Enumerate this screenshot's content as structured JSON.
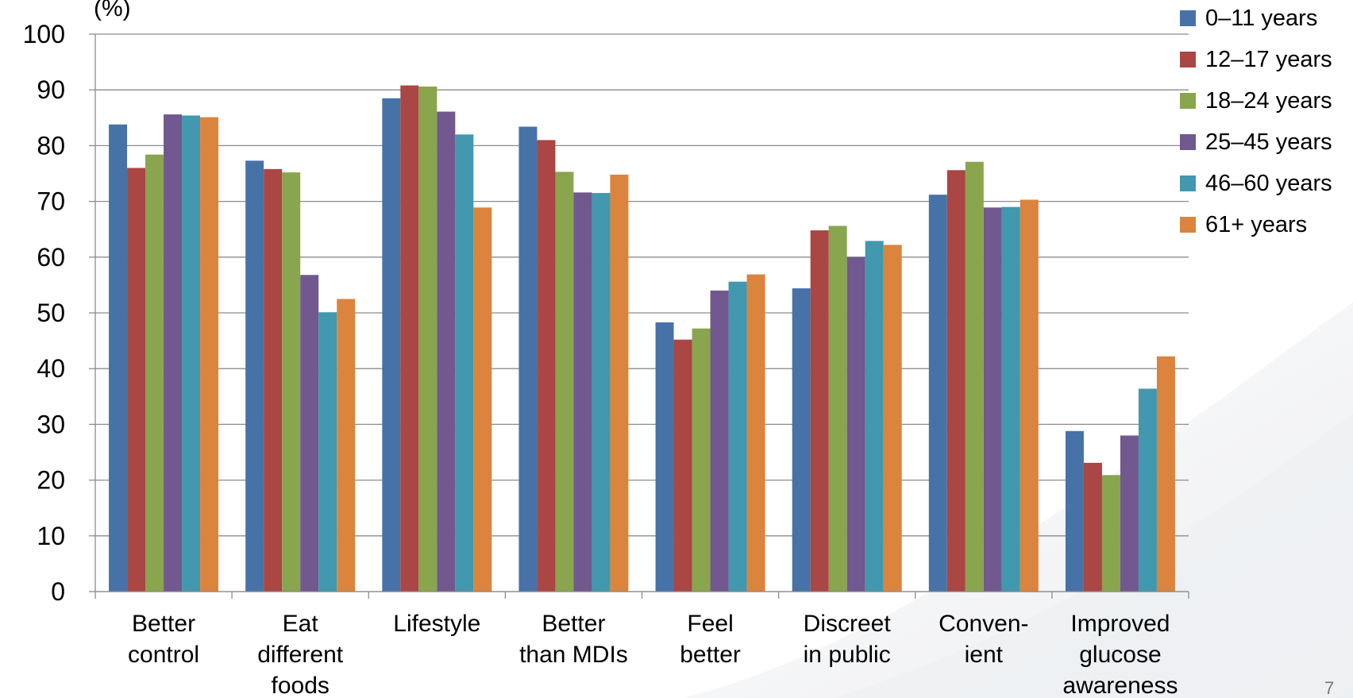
{
  "chart_data": {
    "type": "bar",
    "title": "",
    "ylabel_fragment": "(%)",
    "xlabel": "",
    "ylabel": "",
    "ylim": [
      0,
      100
    ],
    "yticks": [
      0,
      10,
      20,
      30,
      40,
      50,
      60,
      70,
      80,
      90,
      100
    ],
    "grid": true,
    "legend_position": "top-right",
    "categories": [
      [
        "Better",
        "control"
      ],
      [
        "Eat",
        "different",
        "foods"
      ],
      [
        "Lifestyle"
      ],
      [
        "Better",
        "than MDIs"
      ],
      [
        "Feel",
        "better"
      ],
      [
        "Discreet",
        "in public"
      ],
      [
        "Conven-",
        "ient"
      ],
      [
        "Improved",
        "glucose",
        "awareness"
      ]
    ],
    "series": [
      {
        "name": "0–11 years",
        "color": "#4672A8",
        "values": [
          83.8,
          77.3,
          88.5,
          83.4,
          48.3,
          54.4,
          71.2,
          28.8
        ]
      },
      {
        "name": "12–17 years",
        "color": "#AA4643",
        "values": [
          76.0,
          75.8,
          90.8,
          81.0,
          45.2,
          64.8,
          75.6,
          23.1
        ]
      },
      {
        "name": "18–24 years",
        "color": "#89A54E",
        "values": [
          78.4,
          75.2,
          90.6,
          75.3,
          47.2,
          65.6,
          77.1,
          20.9
        ]
      },
      {
        "name": "25–45 years",
        "color": "#71588F",
        "values": [
          85.6,
          56.8,
          86.1,
          71.6,
          54.0,
          60.0,
          68.9,
          28.0
        ]
      },
      {
        "name": "46–60 years",
        "color": "#4198AF",
        "values": [
          85.4,
          50.1,
          82.0,
          71.5,
          55.6,
          62.9,
          69.0,
          36.4
        ]
      },
      {
        "name": "61+ years",
        "color": "#DB843D",
        "values": [
          85.1,
          52.5,
          68.9,
          74.8,
          56.9,
          62.2,
          70.3,
          42.2
        ]
      }
    ]
  },
  "page_number": "7"
}
